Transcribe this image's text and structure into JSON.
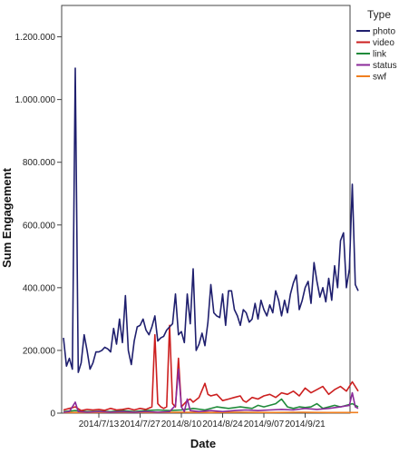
{
  "chart_data": {
    "type": "line",
    "xlabel": "Date",
    "ylabel": "Sum Engagement",
    "ylim": [
      0,
      1300000
    ],
    "grid": false,
    "legend_position": "right",
    "legend_title": "Type",
    "x_tick_labels": [
      "2014/7/13",
      "2014/7/27",
      "2014/8/10",
      "2014/8/24",
      "2014/9/07",
      "2014/9/21"
    ],
    "x_tick_days": [
      12,
      26,
      40,
      54,
      68,
      82
    ],
    "x_range_days": [
      0,
      96
    ],
    "y_ticks": [
      0,
      200000,
      400000,
      600000,
      800000,
      1000000,
      1200000
    ],
    "y_tick_labels": [
      "0",
      "200.000",
      "400.000",
      "600.000",
      "800.000",
      "1.000.000",
      "1.200.000"
    ],
    "series": [
      {
        "name": "photo",
        "color": "#1f1f6e",
        "points": [
          [
            0,
            240000
          ],
          [
            1,
            150000
          ],
          [
            2,
            175000
          ],
          [
            3,
            140000
          ],
          [
            4,
            1100000
          ],
          [
            5,
            130000
          ],
          [
            6,
            160000
          ],
          [
            7,
            250000
          ],
          [
            8,
            200000
          ],
          [
            9,
            140000
          ],
          [
            10,
            160000
          ],
          [
            11,
            195000
          ],
          [
            12,
            195000
          ],
          [
            13,
            200000
          ],
          [
            14,
            210000
          ],
          [
            15,
            205000
          ],
          [
            16,
            195000
          ],
          [
            17,
            270000
          ],
          [
            18,
            220000
          ],
          [
            19,
            300000
          ],
          [
            20,
            225000
          ],
          [
            21,
            375000
          ],
          [
            22,
            200000
          ],
          [
            23,
            155000
          ],
          [
            24,
            230000
          ],
          [
            25,
            275000
          ],
          [
            26,
            280000
          ],
          [
            27,
            300000
          ],
          [
            28,
            265000
          ],
          [
            29,
            250000
          ],
          [
            30,
            275000
          ],
          [
            31,
            310000
          ],
          [
            32,
            230000
          ],
          [
            33,
            240000
          ],
          [
            34,
            245000
          ],
          [
            35,
            265000
          ],
          [
            36,
            275000
          ],
          [
            37,
            285000
          ],
          [
            38,
            380000
          ],
          [
            39,
            250000
          ],
          [
            40,
            260000
          ],
          [
            41,
            225000
          ],
          [
            42,
            380000
          ],
          [
            43,
            285000
          ],
          [
            44,
            460000
          ],
          [
            45,
            200000
          ],
          [
            46,
            220000
          ],
          [
            47,
            255000
          ],
          [
            48,
            215000
          ],
          [
            49,
            290000
          ],
          [
            50,
            410000
          ],
          [
            51,
            320000
          ],
          [
            52,
            310000
          ],
          [
            53,
            305000
          ],
          [
            54,
            380000
          ],
          [
            55,
            280000
          ],
          [
            56,
            390000
          ],
          [
            57,
            390000
          ],
          [
            58,
            330000
          ],
          [
            59,
            310000
          ],
          [
            60,
            280000
          ],
          [
            61,
            330000
          ],
          [
            62,
            320000
          ],
          [
            63,
            290000
          ],
          [
            64,
            300000
          ],
          [
            65,
            350000
          ],
          [
            66,
            300000
          ],
          [
            67,
            360000
          ],
          [
            68,
            330000
          ],
          [
            69,
            310000
          ],
          [
            70,
            345000
          ],
          [
            71,
            320000
          ],
          [
            72,
            390000
          ],
          [
            73,
            360000
          ],
          [
            74,
            310000
          ],
          [
            75,
            360000
          ],
          [
            76,
            320000
          ],
          [
            77,
            380000
          ],
          [
            78,
            415000
          ],
          [
            79,
            440000
          ],
          [
            80,
            330000
          ],
          [
            81,
            360000
          ],
          [
            82,
            400000
          ],
          [
            83,
            420000
          ],
          [
            84,
            350000
          ],
          [
            85,
            480000
          ],
          [
            86,
            420000
          ],
          [
            87,
            370000
          ],
          [
            88,
            400000
          ],
          [
            89,
            355000
          ],
          [
            90,
            430000
          ],
          [
            91,
            360000
          ],
          [
            92,
            470000
          ],
          [
            93,
            400000
          ],
          [
            94,
            550000
          ],
          [
            95,
            575000
          ],
          [
            96,
            400000
          ],
          [
            97,
            460000
          ],
          [
            98,
            730000
          ],
          [
            99,
            410000
          ],
          [
            100,
            390000
          ]
        ]
      },
      {
        "name": "video",
        "color": "#cc1f1f",
        "points": [
          [
            0,
            10000
          ],
          [
            2,
            15000
          ],
          [
            4,
            20000
          ],
          [
            6,
            8000
          ],
          [
            8,
            12000
          ],
          [
            10,
            10000
          ],
          [
            12,
            12000
          ],
          [
            14,
            9000
          ],
          [
            16,
            15000
          ],
          [
            18,
            10000
          ],
          [
            20,
            12000
          ],
          [
            22,
            15000
          ],
          [
            24,
            10000
          ],
          [
            26,
            15000
          ],
          [
            28,
            12000
          ],
          [
            30,
            20000
          ],
          [
            31,
            250000
          ],
          [
            32,
            30000
          ],
          [
            33,
            20000
          ],
          [
            34,
            15000
          ],
          [
            35,
            20000
          ],
          [
            36,
            280000
          ],
          [
            37,
            30000
          ],
          [
            38,
            20000
          ],
          [
            39,
            175000
          ],
          [
            40,
            20000
          ],
          [
            41,
            30000
          ],
          [
            42,
            40000
          ],
          [
            43,
            45000
          ],
          [
            44,
            35000
          ],
          [
            46,
            50000
          ],
          [
            48,
            95000
          ],
          [
            49,
            60000
          ],
          [
            50,
            55000
          ],
          [
            52,
            60000
          ],
          [
            54,
            40000
          ],
          [
            56,
            45000
          ],
          [
            58,
            50000
          ],
          [
            60,
            55000
          ],
          [
            61,
            40000
          ],
          [
            62,
            35000
          ],
          [
            64,
            50000
          ],
          [
            66,
            45000
          ],
          [
            68,
            55000
          ],
          [
            70,
            60000
          ],
          [
            72,
            50000
          ],
          [
            74,
            65000
          ],
          [
            76,
            60000
          ],
          [
            78,
            70000
          ],
          [
            80,
            55000
          ],
          [
            82,
            80000
          ],
          [
            84,
            65000
          ],
          [
            86,
            75000
          ],
          [
            88,
            85000
          ],
          [
            90,
            60000
          ],
          [
            92,
            75000
          ],
          [
            94,
            85000
          ],
          [
            96,
            70000
          ],
          [
            98,
            100000
          ],
          [
            100,
            70000
          ]
        ]
      },
      {
        "name": "link",
        "color": "#1f8a3a",
        "points": [
          [
            0,
            5000
          ],
          [
            4,
            8000
          ],
          [
            8,
            5000
          ],
          [
            12,
            6000
          ],
          [
            16,
            5000
          ],
          [
            20,
            8000
          ],
          [
            24,
            5000
          ],
          [
            28,
            8000
          ],
          [
            32,
            10000
          ],
          [
            36,
            8000
          ],
          [
            40,
            10000
          ],
          [
            44,
            15000
          ],
          [
            48,
            10000
          ],
          [
            52,
            20000
          ],
          [
            56,
            15000
          ],
          [
            60,
            20000
          ],
          [
            64,
            15000
          ],
          [
            66,
            25000
          ],
          [
            68,
            20000
          ],
          [
            70,
            25000
          ],
          [
            72,
            30000
          ],
          [
            74,
            45000
          ],
          [
            76,
            20000
          ],
          [
            78,
            15000
          ],
          [
            80,
            20000
          ],
          [
            82,
            18000
          ],
          [
            84,
            20000
          ],
          [
            86,
            30000
          ],
          [
            88,
            15000
          ],
          [
            90,
            20000
          ],
          [
            92,
            25000
          ],
          [
            94,
            20000
          ],
          [
            96,
            25000
          ],
          [
            98,
            30000
          ],
          [
            100,
            20000
          ]
        ]
      },
      {
        "name": "status",
        "color": "#8b2a9a",
        "points": [
          [
            0,
            3000
          ],
          [
            2,
            5000
          ],
          [
            4,
            35000
          ],
          [
            5,
            5000
          ],
          [
            8,
            3000
          ],
          [
            12,
            5000
          ],
          [
            16,
            3000
          ],
          [
            20,
            5000
          ],
          [
            24,
            3000
          ],
          [
            28,
            5000
          ],
          [
            32,
            3000
          ],
          [
            36,
            5000
          ],
          [
            38,
            25000
          ],
          [
            39,
            140000
          ],
          [
            40,
            20000
          ],
          [
            41,
            5000
          ],
          [
            42,
            45000
          ],
          [
            43,
            8000
          ],
          [
            46,
            5000
          ],
          [
            50,
            8000
          ],
          [
            54,
            5000
          ],
          [
            58,
            8000
          ],
          [
            62,
            10000
          ],
          [
            66,
            8000
          ],
          [
            70,
            10000
          ],
          [
            74,
            12000
          ],
          [
            78,
            10000
          ],
          [
            82,
            15000
          ],
          [
            86,
            12000
          ],
          [
            90,
            15000
          ],
          [
            94,
            20000
          ],
          [
            97,
            25000
          ],
          [
            98,
            65000
          ],
          [
            99,
            20000
          ],
          [
            100,
            15000
          ]
        ]
      },
      {
        "name": "swf",
        "color": "#f07f1f",
        "points": [
          [
            0,
            2000
          ],
          [
            10,
            2000
          ],
          [
            20,
            3000
          ],
          [
            30,
            2000
          ],
          [
            40,
            3000
          ],
          [
            50,
            2000
          ],
          [
            60,
            3000
          ],
          [
            70,
            2000
          ],
          [
            80,
            3000
          ],
          [
            90,
            2000
          ],
          [
            100,
            2000
          ]
        ]
      }
    ]
  }
}
